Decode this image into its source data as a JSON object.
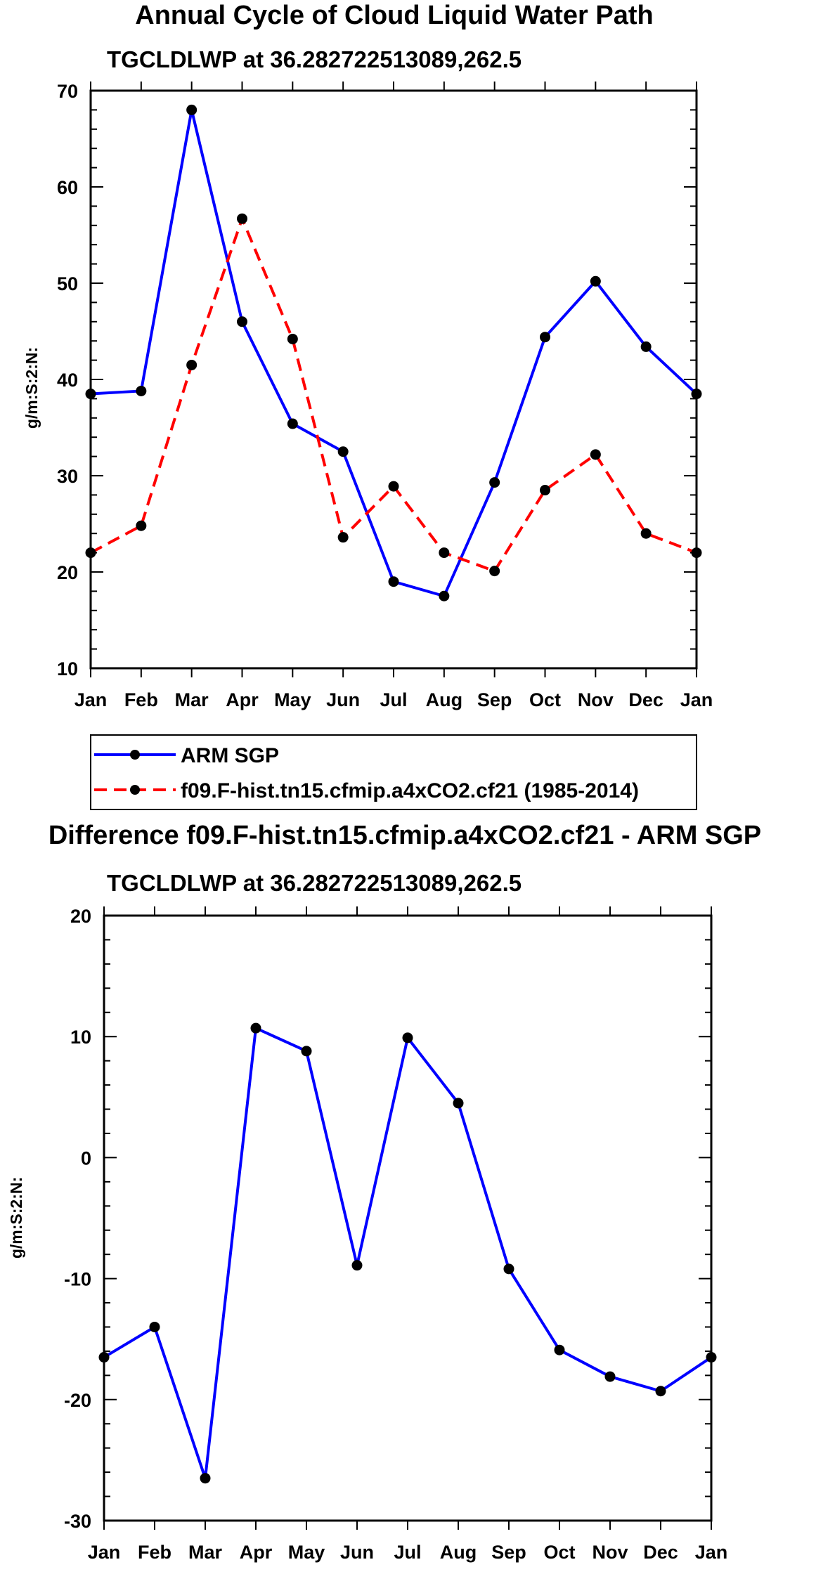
{
  "chart_data": [
    {
      "type": "line",
      "title": "Annual Cycle of Cloud Liquid Water Path",
      "subtitle": "TGCLDLWP at 36.282722513089,262.5",
      "ylabel": "g/m:S:2:N:",
      "xlabel": "",
      "categories": [
        "Jan",
        "Feb",
        "Mar",
        "Apr",
        "May",
        "Jun",
        "Jul",
        "Aug",
        "Sep",
        "Oct",
        "Nov",
        "Dec",
        "Jan"
      ],
      "ylim": [
        10,
        70
      ],
      "yticks": [
        10,
        20,
        30,
        40,
        50,
        60,
        70
      ],
      "series": [
        {
          "name": "ARM SGP",
          "color": "#0000ff",
          "dash": "solid",
          "values": [
            38.5,
            38.8,
            68.0,
            46.0,
            35.4,
            32.5,
            19.0,
            17.5,
            29.3,
            44.4,
            50.2,
            43.4,
            38.5
          ]
        },
        {
          "name": "f09.F-hist.tn15.cfmip.a4xCO2.cf21 (1985-2014)",
          "color": "#ff0000",
          "dash": "dashed",
          "values": [
            22.0,
            24.8,
            41.5,
            56.7,
            44.2,
            23.6,
            28.9,
            22.0,
            20.1,
            28.5,
            32.2,
            24.0,
            22.0
          ]
        }
      ],
      "legend": {
        "placement": "below"
      }
    },
    {
      "type": "line",
      "title": "Difference f09.F-hist.tn15.cfmip.a4xCO2.cf21 - ARM SGP",
      "subtitle": "TGCLDLWP at 36.282722513089,262.5",
      "ylabel": "g/m:S:2:N:",
      "xlabel": "",
      "categories": [
        "Jan",
        "Feb",
        "Mar",
        "Apr",
        "May",
        "Jun",
        "Jul",
        "Aug",
        "Sep",
        "Oct",
        "Nov",
        "Dec",
        "Jan"
      ],
      "ylim": [
        -30,
        20
      ],
      "yticks": [
        -30,
        -20,
        -10,
        0,
        10,
        20
      ],
      "series": [
        {
          "name": "Difference",
          "color": "#0000ff",
          "dash": "solid",
          "values": [
            -16.5,
            -14.0,
            -26.5,
            10.7,
            8.8,
            -8.9,
            9.9,
            4.5,
            -9.2,
            -15.9,
            -18.1,
            -19.3,
            -16.5
          ]
        }
      ]
    }
  ]
}
